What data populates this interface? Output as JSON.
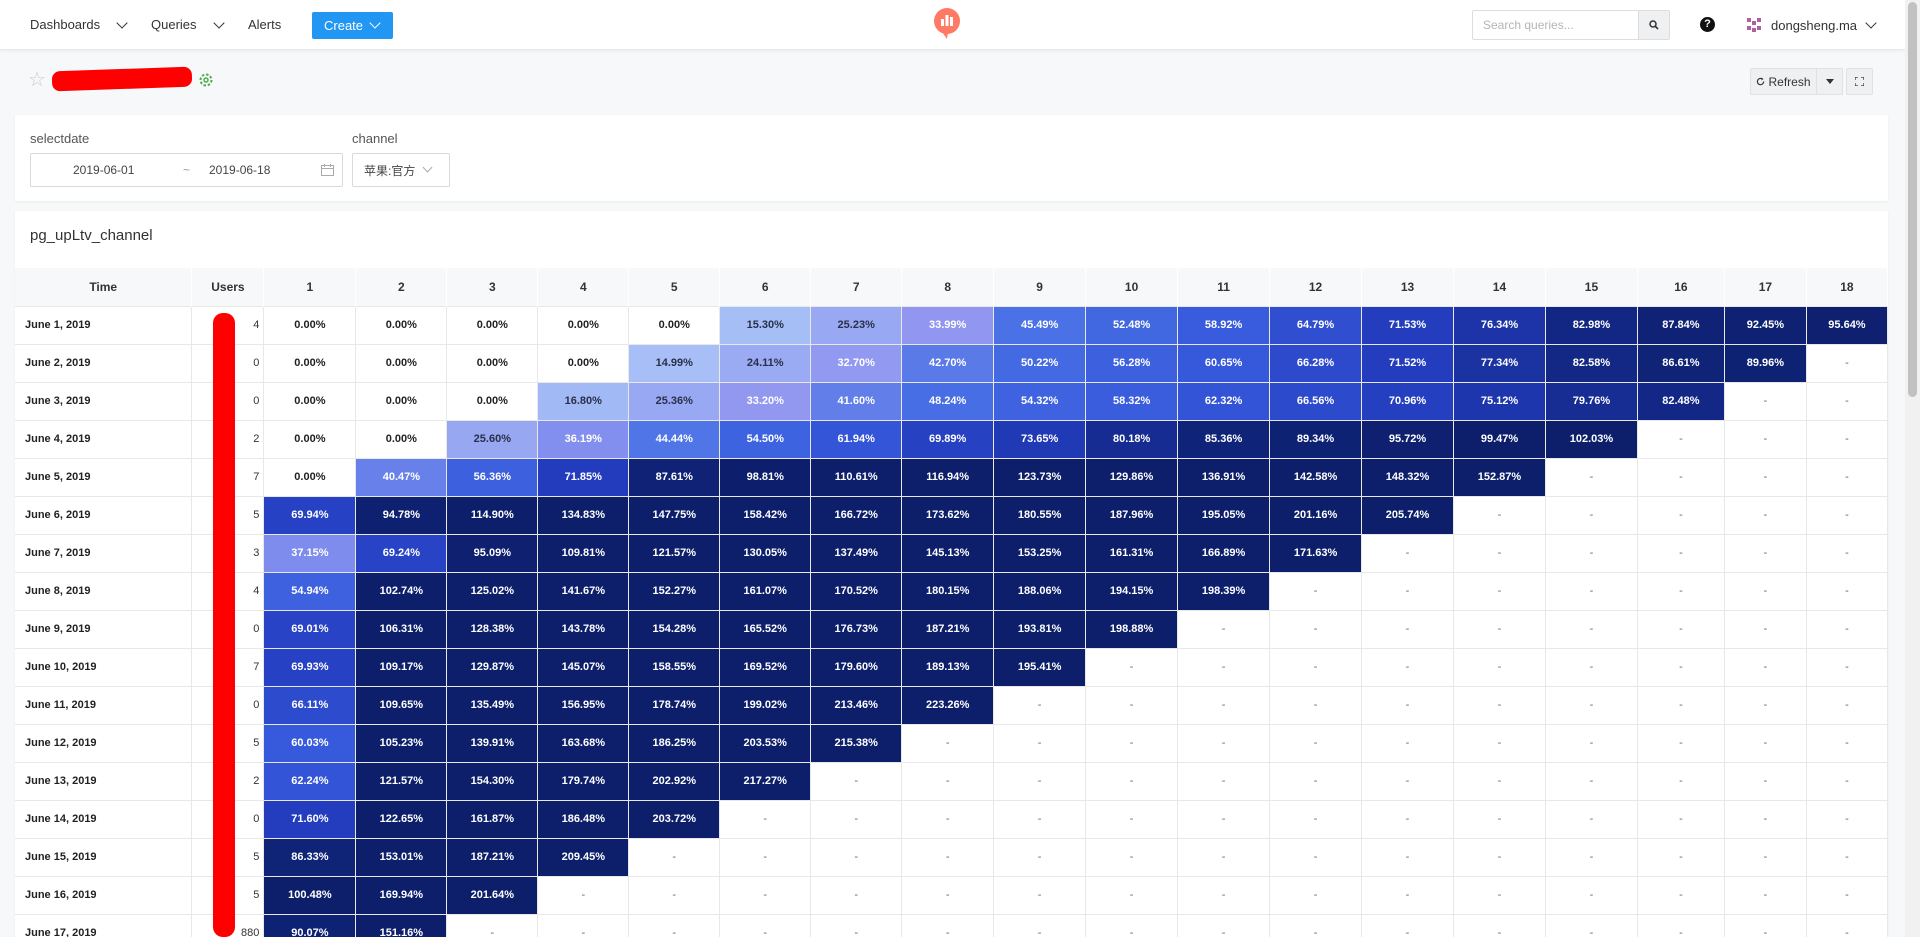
{
  "nav": {
    "dashboards": "Dashboards",
    "queries": "Queries",
    "alerts": "Alerts",
    "create": "Create",
    "search_placeholder": "Search queries...",
    "help": "?",
    "username": "dongsheng.ma"
  },
  "toolbar": {
    "refresh": "Refresh"
  },
  "filters": {
    "selectdate_label": "selectdate",
    "date_start": "2019-06-01",
    "date_sep": "~",
    "date_end": "2019-06-18",
    "channel_label": "channel",
    "channel_value": "苹果:官方"
  },
  "widget": {
    "title": "pg_upLtv_channel"
  },
  "table": {
    "headers": [
      "Time",
      "Users",
      "1",
      "2",
      "3",
      "4",
      "5",
      "6",
      "7",
      "8",
      "9",
      "10",
      "11",
      "12",
      "13",
      "14",
      "15",
      "16",
      "17",
      "18"
    ],
    "rows": [
      {
        "time": "June 1, 2019",
        "users": "4",
        "values": [
          "0.00%",
          "0.00%",
          "0.00%",
          "0.00%",
          "0.00%",
          "15.30%",
          "25.23%",
          "33.99%",
          "45.49%",
          "52.48%",
          "58.92%",
          "64.79%",
          "71.53%",
          "76.34%",
          "82.98%",
          "87.84%",
          "92.45%",
          "95.64%"
        ]
      },
      {
        "time": "June 2, 2019",
        "users": "0",
        "values": [
          "0.00%",
          "0.00%",
          "0.00%",
          "0.00%",
          "14.99%",
          "24.11%",
          "32.70%",
          "42.70%",
          "50.22%",
          "56.28%",
          "60.65%",
          "66.28%",
          "71.52%",
          "77.34%",
          "82.58%",
          "86.61%",
          "89.96%",
          "-"
        ]
      },
      {
        "time": "June 3, 2019",
        "users": "0",
        "values": [
          "0.00%",
          "0.00%",
          "0.00%",
          "16.80%",
          "25.36%",
          "33.20%",
          "41.60%",
          "48.24%",
          "54.32%",
          "58.32%",
          "62.32%",
          "66.56%",
          "70.96%",
          "75.12%",
          "79.76%",
          "82.48%",
          "-",
          "-"
        ]
      },
      {
        "time": "June 4, 2019",
        "users": "2",
        "values": [
          "0.00%",
          "0.00%",
          "25.60%",
          "36.19%",
          "44.44%",
          "54.50%",
          "61.94%",
          "69.89%",
          "73.65%",
          "80.18%",
          "85.36%",
          "89.34%",
          "95.72%",
          "99.47%",
          "102.03%",
          "-",
          "-",
          "-"
        ]
      },
      {
        "time": "June 5, 2019",
        "users": "7",
        "values": [
          "0.00%",
          "40.47%",
          "56.36%",
          "71.85%",
          "87.61%",
          "98.81%",
          "110.61%",
          "116.94%",
          "123.73%",
          "129.86%",
          "136.91%",
          "142.58%",
          "148.32%",
          "152.87%",
          "-",
          "-",
          "-",
          "-"
        ]
      },
      {
        "time": "June 6, 2019",
        "users": "5",
        "values": [
          "69.94%",
          "94.78%",
          "114.90%",
          "134.83%",
          "147.75%",
          "158.42%",
          "166.72%",
          "173.62%",
          "180.55%",
          "187.96%",
          "195.05%",
          "201.16%",
          "205.74%",
          "-",
          "-",
          "-",
          "-",
          "-"
        ]
      },
      {
        "time": "June 7, 2019",
        "users": "3",
        "values": [
          "37.15%",
          "69.24%",
          "95.09%",
          "109.81%",
          "121.57%",
          "130.05%",
          "137.49%",
          "145.13%",
          "153.25%",
          "161.31%",
          "166.89%",
          "171.63%",
          "-",
          "-",
          "-",
          "-",
          "-",
          "-"
        ]
      },
      {
        "time": "June 8, 2019",
        "users": "4",
        "values": [
          "54.94%",
          "102.74%",
          "125.02%",
          "141.67%",
          "152.27%",
          "161.07%",
          "170.52%",
          "180.15%",
          "188.06%",
          "194.15%",
          "198.39%",
          "-",
          "-",
          "-",
          "-",
          "-",
          "-",
          "-"
        ]
      },
      {
        "time": "June 9, 2019",
        "users": "0",
        "values": [
          "69.01%",
          "106.31%",
          "128.38%",
          "143.78%",
          "154.28%",
          "165.52%",
          "176.73%",
          "187.21%",
          "193.81%",
          "198.88%",
          "-",
          "-",
          "-",
          "-",
          "-",
          "-",
          "-",
          "-"
        ]
      },
      {
        "time": "June 10, 2019",
        "users": "7",
        "values": [
          "69.93%",
          "109.17%",
          "129.87%",
          "145.07%",
          "158.55%",
          "169.52%",
          "179.60%",
          "189.13%",
          "195.41%",
          "-",
          "-",
          "-",
          "-",
          "-",
          "-",
          "-",
          "-",
          "-"
        ]
      },
      {
        "time": "June 11, 2019",
        "users": "0",
        "values": [
          "66.11%",
          "109.65%",
          "135.49%",
          "156.95%",
          "178.74%",
          "199.02%",
          "213.46%",
          "223.26%",
          "-",
          "-",
          "-",
          "-",
          "-",
          "-",
          "-",
          "-",
          "-",
          "-"
        ]
      },
      {
        "time": "June 12, 2019",
        "users": "5",
        "values": [
          "60.03%",
          "105.23%",
          "139.91%",
          "163.68%",
          "186.25%",
          "203.53%",
          "215.38%",
          "-",
          "-",
          "-",
          "-",
          "-",
          "-",
          "-",
          "-",
          "-",
          "-",
          "-"
        ]
      },
      {
        "time": "June 13, 2019",
        "users": "2",
        "values": [
          "62.24%",
          "121.57%",
          "154.30%",
          "179.74%",
          "202.92%",
          "217.27%",
          "-",
          "-",
          "-",
          "-",
          "-",
          "-",
          "-",
          "-",
          "-",
          "-",
          "-",
          "-"
        ]
      },
      {
        "time": "June 14, 2019",
        "users": "0",
        "values": [
          "71.60%",
          "122.65%",
          "161.87%",
          "186.48%",
          "203.72%",
          "-",
          "-",
          "-",
          "-",
          "-",
          "-",
          "-",
          "-",
          "-",
          "-",
          "-",
          "-",
          "-"
        ]
      },
      {
        "time": "June 15, 2019",
        "users": "5",
        "values": [
          "86.33%",
          "153.01%",
          "187.21%",
          "209.45%",
          "-",
          "-",
          "-",
          "-",
          "-",
          "-",
          "-",
          "-",
          "-",
          "-",
          "-",
          "-",
          "-",
          "-"
        ]
      },
      {
        "time": "June 16, 2019",
        "users": "5",
        "values": [
          "100.48%",
          "169.94%",
          "201.64%",
          "-",
          "-",
          "-",
          "-",
          "-",
          "-",
          "-",
          "-",
          "-",
          "-",
          "-",
          "-",
          "-",
          "-",
          "-"
        ]
      },
      {
        "time": "June 17, 2019",
        "users": "880",
        "values": [
          "90.07%",
          "151.16%",
          "-",
          "-",
          "-",
          "-",
          "-",
          "-",
          "-",
          "-",
          "-",
          "-",
          "-",
          "-",
          "-",
          "-",
          "-",
          "-"
        ]
      }
    ]
  },
  "colors": {
    "accent": "#2196f3",
    "cohort_darkest": "#0d1f6b",
    "cohort_lightest": "#dce6fb"
  }
}
